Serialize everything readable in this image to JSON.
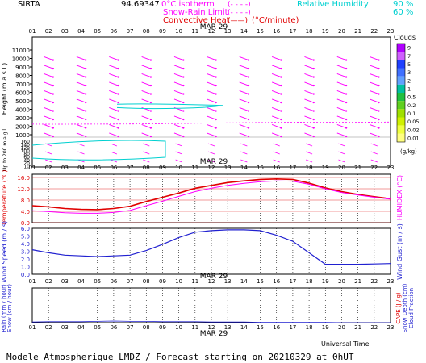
{
  "header": {
    "site": "SIRTA",
    "number": "94.69347",
    "legend_zero_isotherm": "0°C isotherm",
    "legend_zero_isotherm_symbol": "(- - - -)",
    "legend_snow_rain": "Snow-Rain Limit",
    "legend_snow_rain_symbol": "(- - - -)",
    "legend_convective": "Convective Heat",
    "legend_convective_symbol": "(——)",
    "legend_convective_unit": "(°C/minute)",
    "legend_rh": "Relative Humidity",
    "rh_90": "90 %",
    "rh_60": "60 %"
  },
  "date_label": "MAR 29",
  "hours": [
    "01",
    "02",
    "03",
    "04",
    "05",
    "06",
    "07",
    "08",
    "09",
    "10",
    "11",
    "12",
    "13",
    "14",
    "15",
    "16",
    "17",
    "18",
    "19",
    "20",
    "21",
    "22",
    "23"
  ],
  "panel_height": {
    "ylabel": "Height (m a.s.l.)",
    "ylabel_low": "Up to 200 m a.g.l.",
    "ticks_upper": [
      "11000",
      "10000",
      "9000",
      "8000",
      "7000",
      "6000",
      "5000",
      "4000",
      "3000",
      "2000",
      "1000"
    ],
    "ticks_lower": [
      "160",
      "140",
      "120",
      "100",
      "80",
      "60",
      "40",
      "20",
      "10"
    ]
  },
  "clouds": {
    "title": "Clouds",
    "levels": [
      "9",
      "7",
      "5",
      "3",
      "2",
      "1",
      "0.5",
      "0.2",
      "0.1",
      "0.05",
      "0.02",
      "0.01"
    ],
    "unit": "(g/kg)",
    "colors": [
      "#b000ff",
      "#d060ff",
      "#2040ff",
      "#4070ff",
      "#60a0ff",
      "#00c0a0",
      "#20c040",
      "#60d020",
      "#a0e000",
      "#d0f000",
      "#f0ff40",
      "#ffff80"
    ]
  },
  "panel_temp": {
    "ylabel": "Temperature (°C)",
    "ylabel_right": "HUMIDEX (°C)",
    "ticks": [
      "16.0",
      "12.0",
      "8.0",
      "4.0",
      "0.0"
    ],
    "ylim": [
      0,
      16
    ]
  },
  "panel_wind": {
    "ylabel": "Wind Speed (m / s)",
    "ylabel_right": "Wind Gust (m / s)",
    "ticks": [
      "6.0",
      "5.0",
      "4.0",
      "3.0",
      "2.0",
      "1.0",
      "0.0"
    ],
    "ylim": [
      0,
      6
    ]
  },
  "panel_rain": {
    "ylabel": "Rain (mm / hour)",
    "ylabel2": "Snow (cm / hour)",
    "ylabel_right": "CAPE (J / g)",
    "ylabel_right2": "Snow Depth (cm)",
    "ylabel_right3": "Cloud Fraction"
  },
  "footer": {
    "axis_label": "Universal Time",
    "caption": "Modele Atmospherique LMDZ / Forecast starting on 20210329 at 0hUT"
  },
  "chart_data": {
    "type": "line",
    "x": [
      "01",
      "02",
      "03",
      "04",
      "05",
      "06",
      "07",
      "08",
      "09",
      "10",
      "11",
      "12",
      "13",
      "14",
      "15",
      "16",
      "17",
      "18",
      "19",
      "20",
      "21",
      "22",
      "23"
    ],
    "series": [
      {
        "name": "Temperature",
        "panel": "temp",
        "color": "#e00000",
        "values": [
          6.0,
          5.6,
          5.0,
          4.7,
          4.6,
          5.0,
          5.8,
          7.5,
          9.0,
          10.5,
          12.2,
          13.2,
          14.2,
          14.8,
          15.3,
          15.5,
          15.3,
          14.0,
          12.3,
          11.0,
          10.0,
          9.2,
          8.5
        ]
      },
      {
        "name": "Humidex",
        "panel": "temp",
        "color": "#ff00ff",
        "values": [
          4.2,
          3.9,
          3.5,
          3.3,
          3.3,
          3.6,
          4.3,
          6.0,
          7.6,
          9.3,
          11.0,
          12.2,
          13.2,
          13.9,
          14.5,
          14.8,
          14.7,
          13.6,
          12.0,
          10.7,
          9.8,
          9.0,
          8.3
        ]
      },
      {
        "name": "Wind Speed",
        "panel": "wind",
        "color": "#2020d0",
        "values": [
          3.2,
          2.8,
          2.5,
          2.4,
          2.3,
          2.4,
          2.5,
          3.1,
          3.9,
          4.8,
          5.5,
          5.7,
          5.8,
          5.8,
          5.7,
          5.1,
          4.3,
          2.8,
          1.3,
          1.3,
          1.3,
          1.35,
          1.4
        ]
      },
      {
        "name": "Rain",
        "panel": "rain",
        "color": "#2020d0",
        "values": [
          0.02,
          0.03,
          0.03,
          0.03,
          0.04,
          0.05,
          0.04,
          0.04,
          0.03,
          0.03,
          0.03,
          0.02,
          0.02,
          0.02,
          0.01,
          0.01,
          0.01,
          0.01,
          0.01,
          0.0,
          0.0,
          0.0,
          0.0
        ]
      },
      {
        "name": "Zero isotherm height",
        "panel": "height",
        "color": "#ff00ff",
        "values": [
          2250,
          2240,
          2240,
          2250,
          2250,
          2260,
          2270,
          2280,
          2300,
          2320,
          2350,
          2380,
          2400,
          2420,
          2440,
          2460,
          2470,
          2480,
          2480,
          2480,
          2480,
          2490,
          2500
        ]
      }
    ],
    "wind_arrows": {
      "levels_m": [
        10000,
        9000,
        8000,
        7000,
        6000,
        5000,
        4000,
        3000,
        2000,
        1000
      ],
      "direction_deg_toward": 20,
      "color": "#ff00ff"
    },
    "rh_contour_90_height_m": [
      4500,
      4000
    ],
    "grid": true
  }
}
